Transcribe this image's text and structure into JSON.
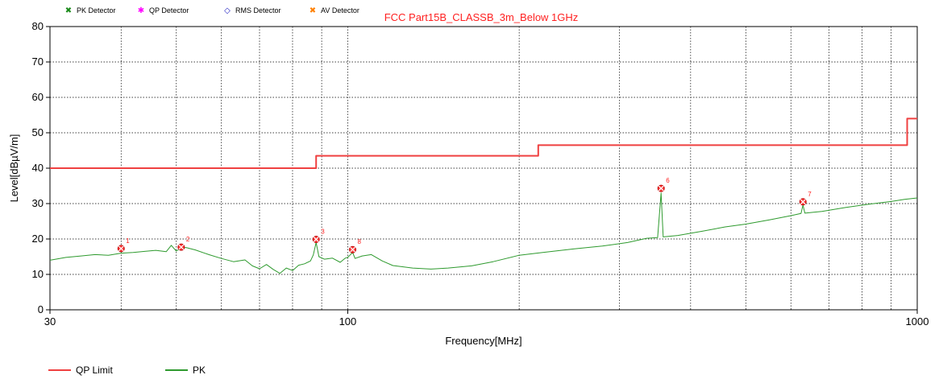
{
  "chart_data": {
    "type": "line",
    "title": "FCC Part15B_CLASSB_3m_Below 1GHz",
    "xlabel": "Frequency[MHz]",
    "ylabel": "Level[dBµV/m]",
    "x_scale": "log",
    "xlim": [
      30,
      1000
    ],
    "ylim": [
      0,
      80
    ],
    "grid": true,
    "x_ticks": [
      "30",
      "100",
      "1000"
    ],
    "y_ticks": [
      "0",
      "10",
      "20",
      "30",
      "40",
      "50",
      "60",
      "70",
      "80"
    ],
    "top_legend": [
      {
        "label": "PK Detector",
        "color": "#1a8a1a",
        "symbol": "✖"
      },
      {
        "label": "QP Detector",
        "color": "#ff00ff",
        "symbol": "✱"
      },
      {
        "label": "RMS Detector",
        "color": "#2020c0",
        "symbol": "◇"
      },
      {
        "label": "AV Detector",
        "color": "#ff8000",
        "symbol": "✖"
      }
    ],
    "series": [
      {
        "name": "QP Limit",
        "color": "#ef4040",
        "step": true,
        "points": [
          [
            30,
            40
          ],
          [
            88,
            40
          ],
          [
            88,
            43.5
          ],
          [
            216,
            43.5
          ],
          [
            216,
            46.5
          ],
          [
            960,
            46.5
          ],
          [
            960,
            54
          ],
          [
            1000,
            54
          ]
        ]
      },
      {
        "name": "PK",
        "color": "#2e9a2e",
        "points": [
          [
            30,
            14
          ],
          [
            32,
            14.8
          ],
          [
            34,
            15.2
          ],
          [
            36,
            15.6
          ],
          [
            38,
            15.4
          ],
          [
            40,
            16
          ],
          [
            42,
            16.2
          ],
          [
            44,
            16.5
          ],
          [
            46,
            16.8
          ],
          [
            48,
            16.4
          ],
          [
            49,
            18.2
          ],
          [
            50,
            16.6
          ],
          [
            51,
            17.5
          ],
          [
            52,
            17.6
          ],
          [
            54,
            16.9
          ],
          [
            57,
            15.6
          ],
          [
            60,
            14.5
          ],
          [
            63,
            13.6
          ],
          [
            66,
            14.1
          ],
          [
            68,
            12.4
          ],
          [
            70,
            11.6
          ],
          [
            72,
            12.8
          ],
          [
            74,
            11.4
          ],
          [
            76,
            10.3
          ],
          [
            78,
            11.8
          ],
          [
            80,
            11.1
          ],
          [
            82,
            12.6
          ],
          [
            84,
            13
          ],
          [
            86,
            13.8
          ],
          [
            87,
            15.5
          ],
          [
            88,
            19
          ],
          [
            89,
            15
          ],
          [
            91,
            14.3
          ],
          [
            94,
            14.6
          ],
          [
            97,
            13.4
          ],
          [
            99,
            14.6
          ],
          [
            100,
            14.8
          ],
          [
            102,
            16.2
          ],
          [
            103,
            14.5
          ],
          [
            106,
            15.2
          ],
          [
            110,
            15.6
          ],
          [
            115,
            13.8
          ],
          [
            120,
            12.5
          ],
          [
            130,
            11.8
          ],
          [
            140,
            11.5
          ],
          [
            150,
            11.8
          ],
          [
            165,
            12.4
          ],
          [
            180,
            13.6
          ],
          [
            200,
            15.4
          ],
          [
            220,
            16.2
          ],
          [
            250,
            17.2
          ],
          [
            280,
            18
          ],
          [
            310,
            19
          ],
          [
            335,
            20.2
          ],
          [
            350,
            20.4
          ],
          [
            355,
            33
          ],
          [
            358,
            20.6
          ],
          [
            380,
            21
          ],
          [
            420,
            22.2
          ],
          [
            460,
            23.4
          ],
          [
            500,
            24.2
          ],
          [
            550,
            25.4
          ],
          [
            600,
            26.6
          ],
          [
            625,
            27.2
          ],
          [
            630,
            29.6
          ],
          [
            635,
            27.3
          ],
          [
            680,
            27.8
          ],
          [
            750,
            28.9
          ],
          [
            820,
            29.8
          ],
          [
            900,
            30.6
          ],
          [
            950,
            31.2
          ],
          [
            1000,
            31.6
          ]
        ]
      }
    ],
    "markers": [
      {
        "label": "1",
        "x": 40,
        "y": 17.3
      },
      {
        "label": "2",
        "x": 51,
        "y": 17.7
      },
      {
        "label": "3",
        "x": 88,
        "y": 19.9
      },
      {
        "label": "8",
        "x": 102,
        "y": 17
      },
      {
        "label": "6",
        "x": 355,
        "y": 34.3
      },
      {
        "label": "7",
        "x": 630,
        "y": 30.5
      }
    ],
    "bottom_legend": [
      {
        "label": "QP Limit",
        "color": "#ef4040"
      },
      {
        "label": "PK",
        "color": "#2e9a2e"
      }
    ]
  }
}
